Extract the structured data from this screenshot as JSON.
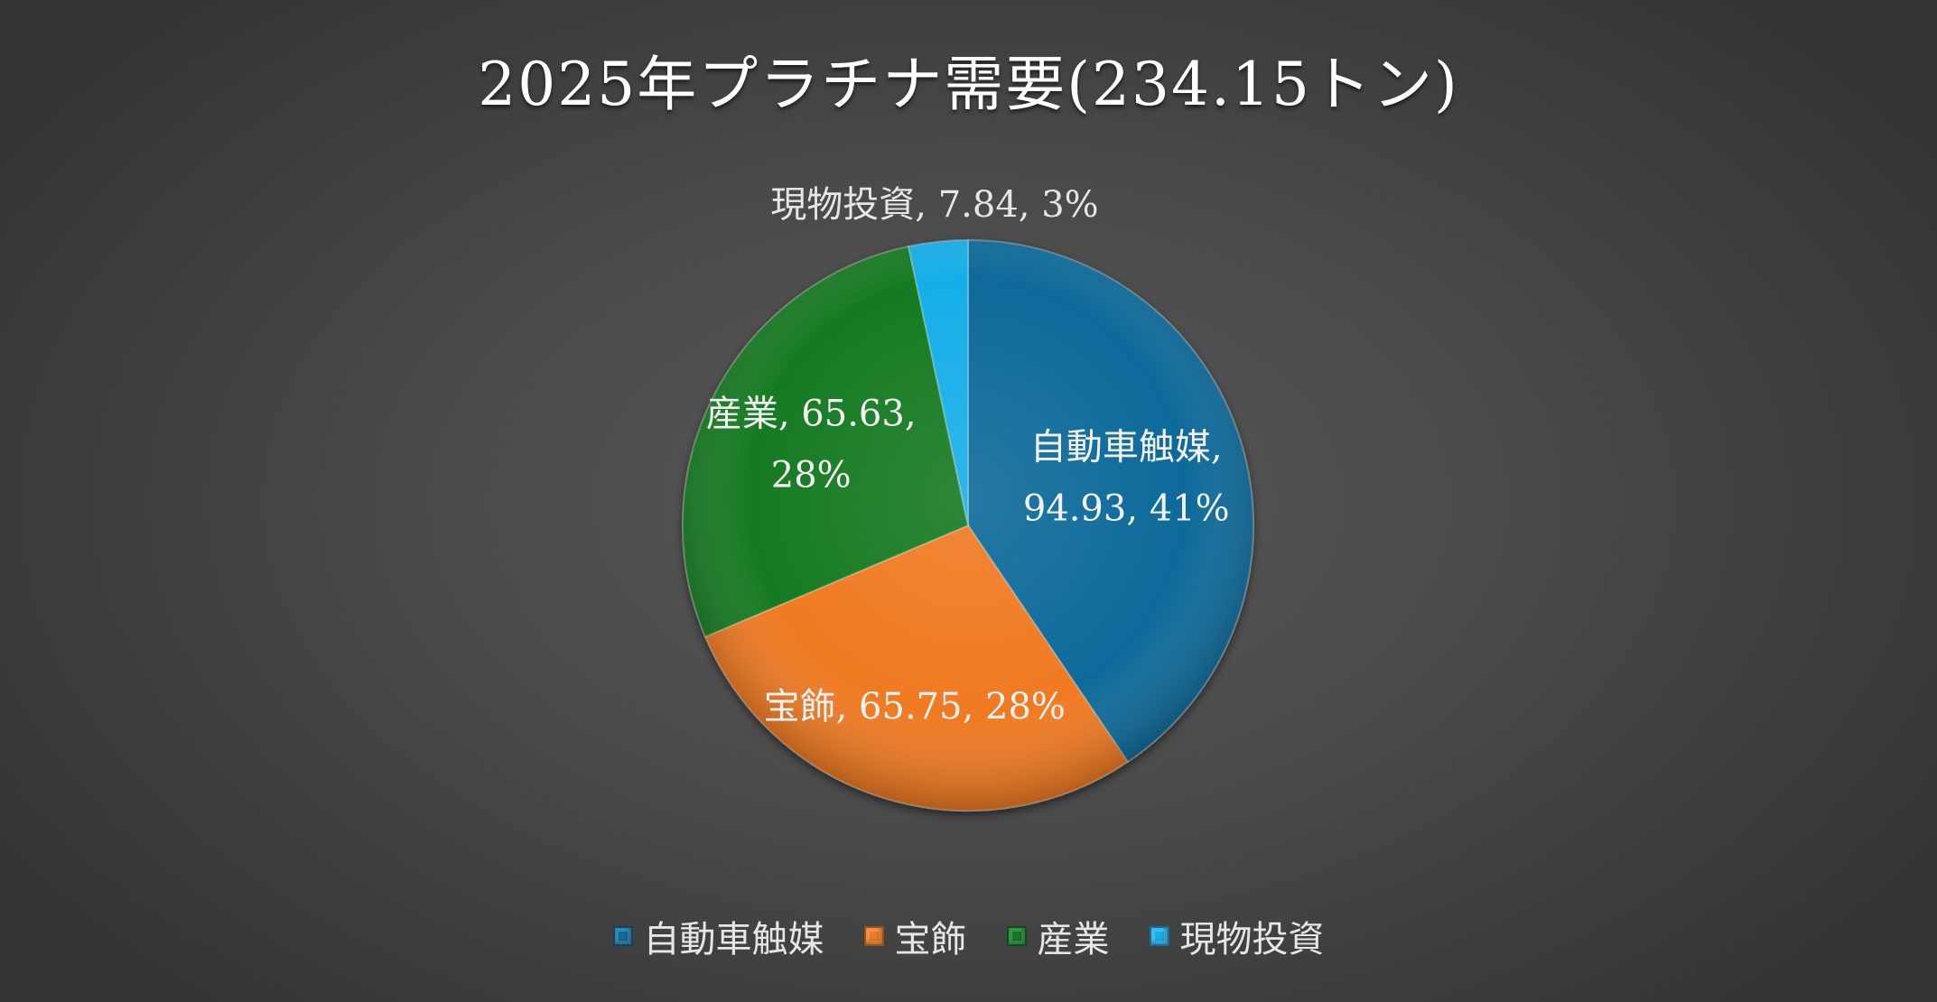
{
  "chart_data": {
    "type": "pie",
    "title": "2025年プラチナ需要(234.15トン)",
    "slices": [
      {
        "name": "自動車触媒",
        "value": 94.93,
        "percent": "41%",
        "color": "#0e6a9a",
        "label_lines": [
          "自動車触媒,",
          "94.93, 41%"
        ]
      },
      {
        "name": "宝飾",
        "value": 65.75,
        "percent": "28%",
        "color": "#f07a20",
        "label_lines": [
          "宝飾, 65.75, 28%"
        ]
      },
      {
        "name": "産業",
        "value": 65.63,
        "percent": "28%",
        "color": "#127a22",
        "label_lines": [
          "産業, 65.63,",
          "28%"
        ]
      },
      {
        "name": "現物投資",
        "value": 7.84,
        "percent": "3%",
        "color": "#19aee8",
        "label_lines": [
          "現物投資, 7.84, 3%"
        ]
      }
    ],
    "legend": {
      "position": "bottom"
    }
  }
}
